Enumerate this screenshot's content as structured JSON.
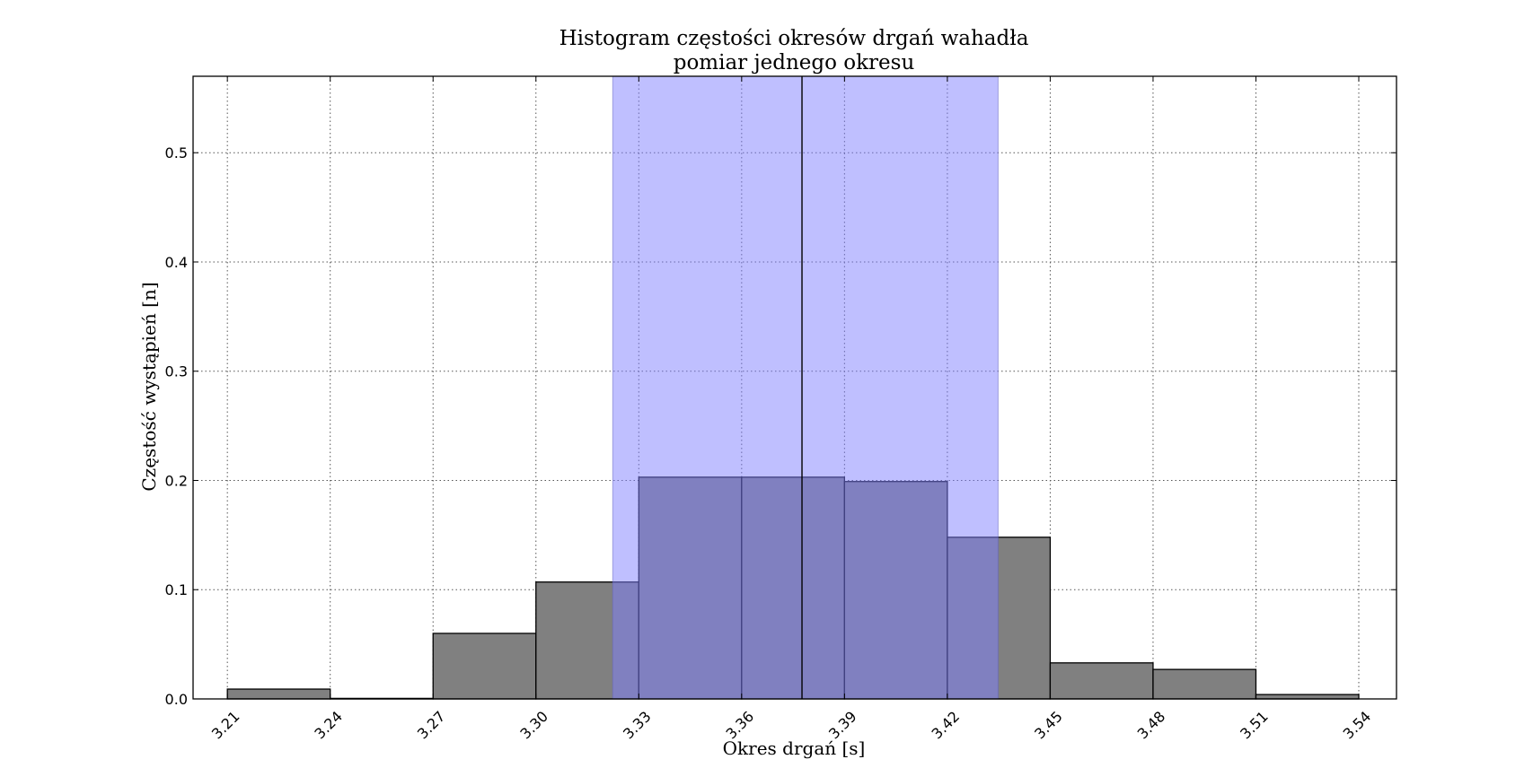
{
  "chart_data": {
    "type": "bar",
    "title": "Histogram częstości okresów drgań wahadła",
    "subtitle": "pomiar jednego okresu",
    "xlabel": "Okres drgań [s]",
    "ylabel": "Częstość wystąpień [n]",
    "xlim": [
      3.2,
      3.551
    ],
    "ylim": [
      0,
      0.57
    ],
    "x_ticks": [
      {
        "value": 3.21,
        "label": "3.21"
      },
      {
        "value": 3.24,
        "label": "3.24"
      },
      {
        "value": 3.27,
        "label": "3.27"
      },
      {
        "value": 3.3,
        "label": "3.30"
      },
      {
        "value": 3.33,
        "label": "3.33"
      },
      {
        "value": 3.36,
        "label": "3.36"
      },
      {
        "value": 3.39,
        "label": "3.39"
      },
      {
        "value": 3.42,
        "label": "3.42"
      },
      {
        "value": 3.45,
        "label": "3.45"
      },
      {
        "value": 3.48,
        "label": "3.48"
      },
      {
        "value": 3.51,
        "label": "3.51"
      },
      {
        "value": 3.54,
        "label": "3.54"
      }
    ],
    "y_ticks": [
      {
        "value": 0.0,
        "label": "0.0"
      },
      {
        "value": 0.1,
        "label": "0.1"
      },
      {
        "value": 0.2,
        "label": "0.2"
      },
      {
        "value": 0.3,
        "label": "0.3"
      },
      {
        "value": 0.4,
        "label": "0.4"
      },
      {
        "value": 0.5,
        "label": "0.5"
      }
    ],
    "bins": [
      {
        "start": 3.21,
        "end": 3.24,
        "value": 0.009
      },
      {
        "start": 3.24,
        "end": 3.27,
        "value": 0.0
      },
      {
        "start": 3.27,
        "end": 3.3,
        "value": 0.06
      },
      {
        "start": 3.3,
        "end": 3.33,
        "value": 0.107
      },
      {
        "start": 3.33,
        "end": 3.36,
        "value": 0.203
      },
      {
        "start": 3.36,
        "end": 3.39,
        "value": 0.203
      },
      {
        "start": 3.39,
        "end": 3.42,
        "value": 0.199
      },
      {
        "start": 3.42,
        "end": 3.45,
        "value": 0.148
      },
      {
        "start": 3.45,
        "end": 3.48,
        "value": 0.033
      },
      {
        "start": 3.48,
        "end": 3.51,
        "value": 0.027
      },
      {
        "start": 3.51,
        "end": 3.54,
        "value": 0.004
      }
    ],
    "mean": 3.3776,
    "band": [
      3.3224,
      3.4348
    ],
    "grid": true,
    "colors": {
      "bar_fill": "#808080",
      "bar_edge": "#000000",
      "band_fill": "#8080ff",
      "mean_line": "#000000",
      "grid": "#555555",
      "axis": "#000000"
    }
  }
}
